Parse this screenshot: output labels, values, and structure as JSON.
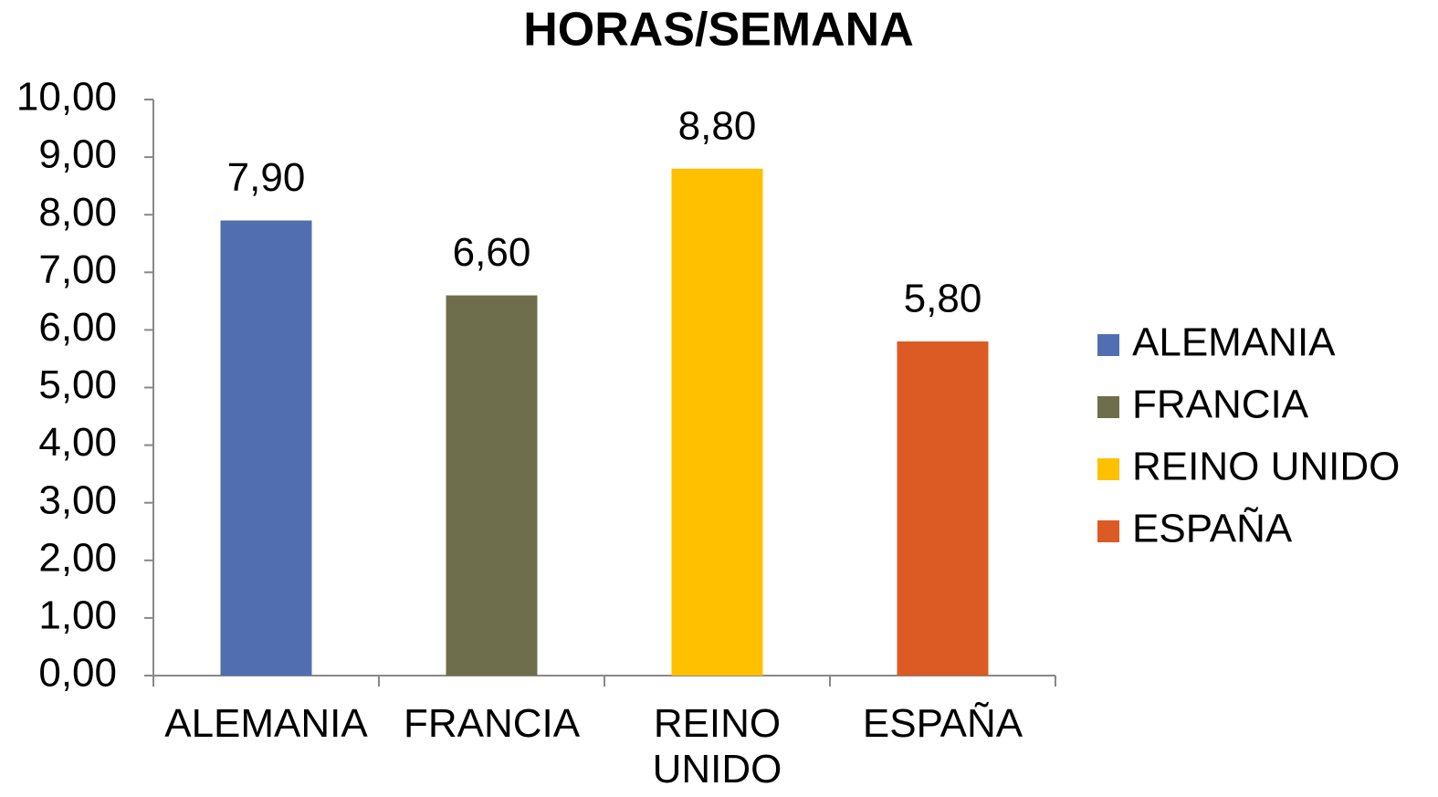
{
  "chart_data": {
    "type": "bar",
    "title": "HORAS/SEMANA",
    "categories": [
      "ALEMANIA",
      "FRANCIA",
      "REINO UNIDO",
      "ESPAÑA"
    ],
    "values": [
      7.9,
      6.6,
      8.8,
      5.8
    ],
    "value_labels": [
      "7,90",
      "6,60",
      "8,80",
      "5,80"
    ],
    "colors": [
      "#516fb0",
      "#6e6e4c",
      "#ffc000",
      "#dc5a24"
    ],
    "ylim": [
      0,
      10
    ],
    "yticks": [
      {
        "value": 0,
        "label": "0,00"
      },
      {
        "value": 1,
        "label": "1,00"
      },
      {
        "value": 2,
        "label": "2,00"
      },
      {
        "value": 3,
        "label": "3,00"
      },
      {
        "value": 4,
        "label": "4,00"
      },
      {
        "value": 5,
        "label": "5,00"
      },
      {
        "value": 6,
        "label": "6,00"
      },
      {
        "value": 7,
        "label": "7,00"
      },
      {
        "value": 8,
        "label": "8,00"
      },
      {
        "value": 9,
        "label": "9,00"
      },
      {
        "value": 10,
        "label": "10,00"
      }
    ],
    "grid": false,
    "legend": "right"
  }
}
